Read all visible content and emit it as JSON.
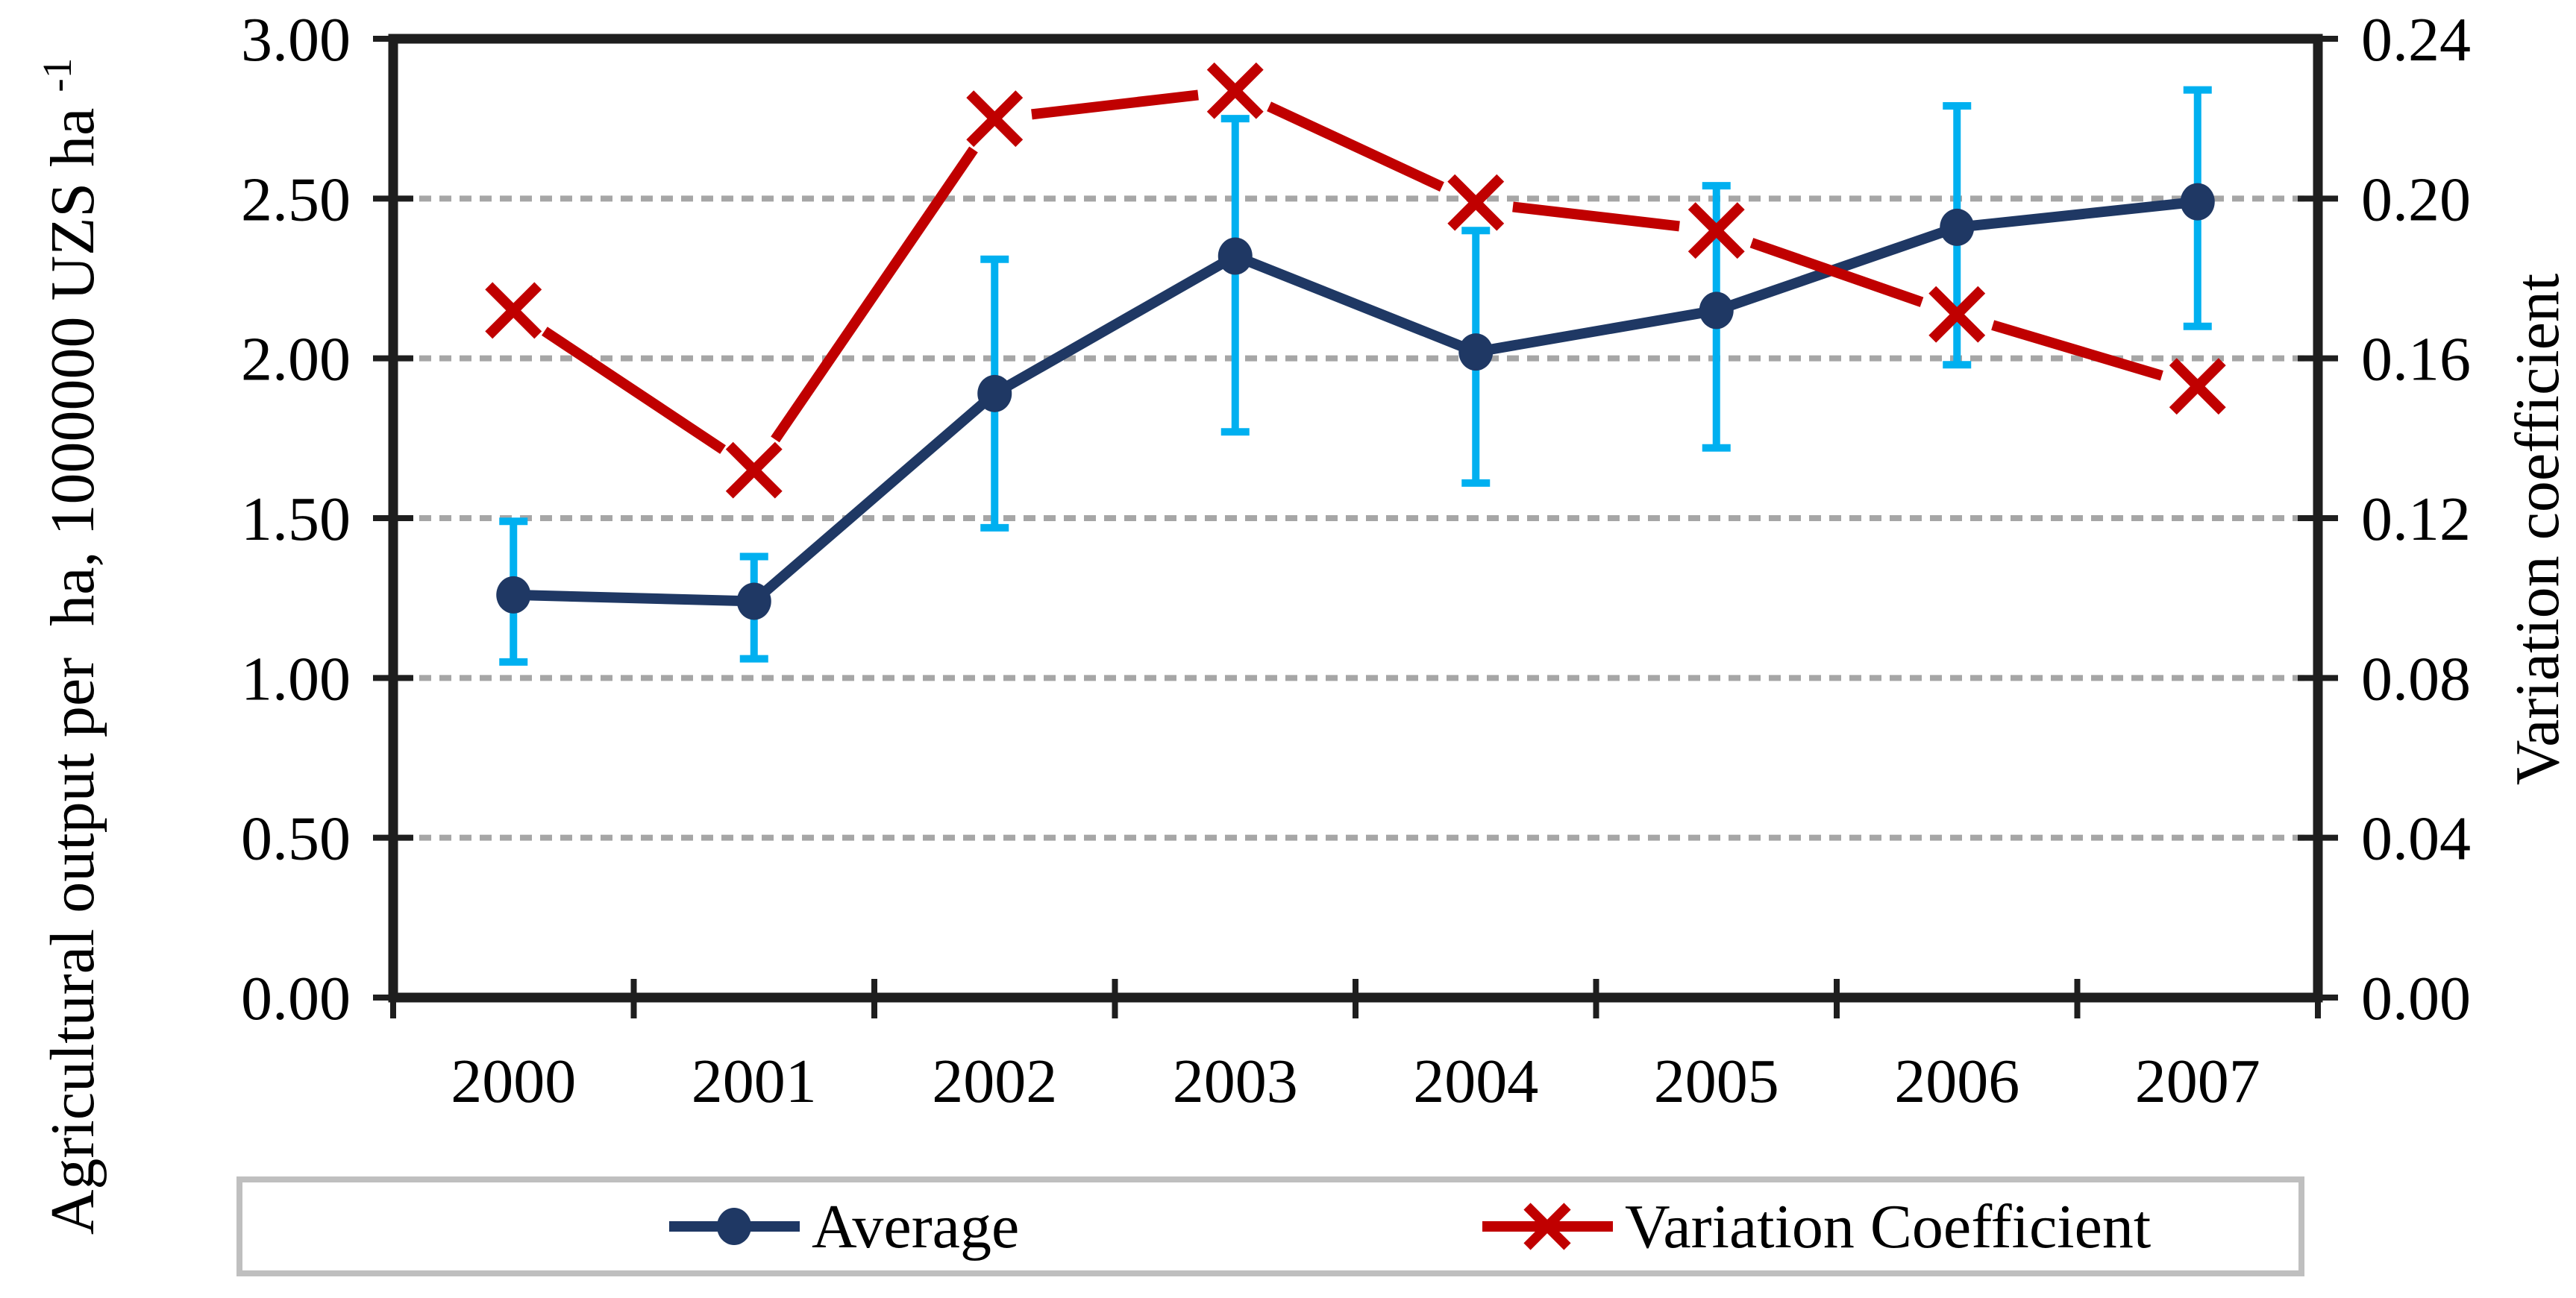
{
  "figure": {
    "background": "#FFFFFF"
  },
  "chart_data": {
    "type": "line",
    "categories": [
      "2000",
      "2001",
      "2002",
      "2003",
      "2004",
      "2005",
      "2006",
      "2007"
    ],
    "series": [
      {
        "name": "Average",
        "axis": "left",
        "marker": "circle",
        "color": "#1F3864",
        "values": [
          1.26,
          1.24,
          1.89,
          2.32,
          2.02,
          2.15,
          2.41,
          2.49
        ],
        "error_low": [
          1.05,
          1.06,
          1.47,
          1.77,
          1.61,
          1.72,
          1.98,
          2.1
        ],
        "error_high": [
          1.49,
          1.38,
          2.31,
          2.75,
          2.4,
          2.54,
          2.79,
          2.84
        ],
        "error_color": "#00B0F0"
      },
      {
        "name": "Variation Coefficient",
        "axis": "right",
        "marker": "x",
        "color": "#C00000",
        "values": [
          0.172,
          0.132,
          0.22,
          0.227,
          0.199,
          0.192,
          0.171,
          0.153
        ]
      }
    ],
    "left_axis": {
      "title": "Agricultural output per  ha, 1000000 UZS ha",
      "title_superscript": "-1",
      "ticks": [
        "3.00",
        "2.50",
        "2.00",
        "1.50",
        "1.00",
        "0.50",
        "0.00"
      ],
      "range": [
        0,
        3
      ]
    },
    "right_axis": {
      "title": "Variation coefficient",
      "ticks": [
        "0.24",
        "0.20",
        "0.16",
        "0.12",
        "0.08",
        "0.04",
        "0.00"
      ],
      "range": [
        0,
        0.24
      ]
    },
    "x_axis": {
      "label_values": [
        "2000",
        "2001",
        "2002",
        "2003",
        "2004",
        "2005",
        "2006",
        "2007"
      ]
    },
    "grid": {
      "show": true,
      "style": "dashed",
      "color": "#A6A6A6",
      "at_left_values": [
        2.5,
        2.0,
        1.5,
        1.0,
        0.5
      ]
    },
    "legend": {
      "position": "bottom",
      "border_color": "#BFBFBF",
      "items": [
        "Average",
        "Variation Coefficient"
      ]
    },
    "axis_color": "#1E1E1E"
  }
}
